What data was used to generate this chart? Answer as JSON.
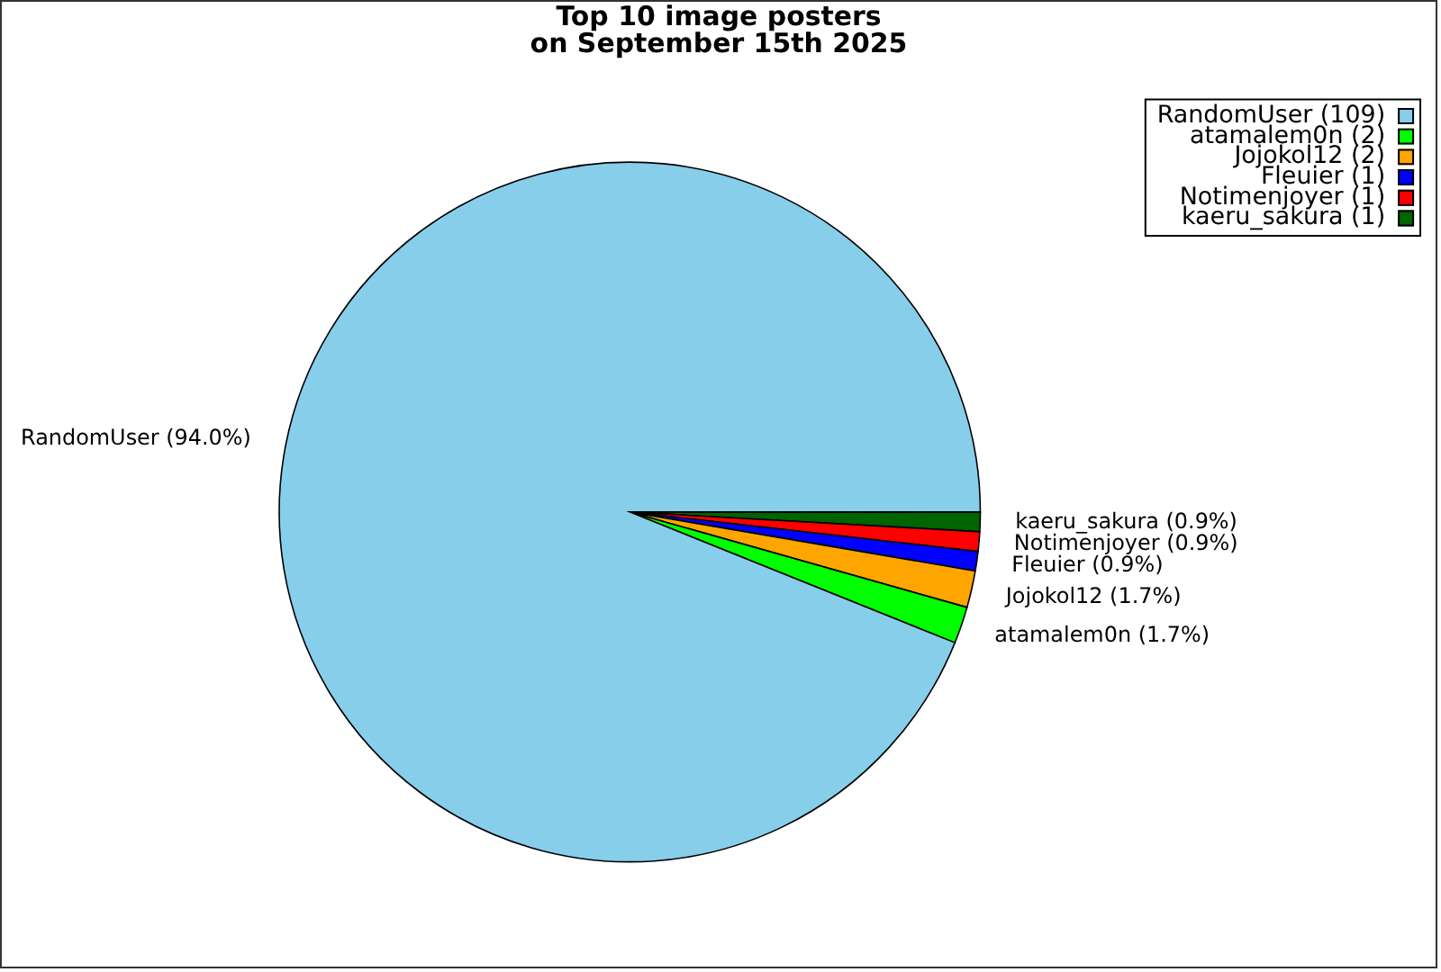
{
  "chart_data": {
    "type": "pie",
    "title": "Top 10 image posters\non September 15th 2025",
    "categories": [
      "RandomUser (109)",
      "atamalem0n (2)",
      "Jojokol12 (2)",
      "Fleuier (1)",
      "Notimenjoyer (1)",
      "kaeru_sakura (1)"
    ],
    "values": [
      94.0,
      1.7,
      1.7,
      0.9,
      0.9,
      0.9
    ],
    "colors": [
      "#87ceeb",
      "#00ff00",
      "#ffa500",
      "#0000ff",
      "#ff0000",
      "#006400"
    ],
    "value_labels": [
      "RandomUser (94.0%)",
      "atamalem0n (1.7%)",
      "Jojokol12 (1.7%)",
      "Fleuier (0.9%)",
      "Notimenjoyer (0.9%)",
      "kaeru_sakura (0.9%)"
    ],
    "legend": "top right"
  }
}
